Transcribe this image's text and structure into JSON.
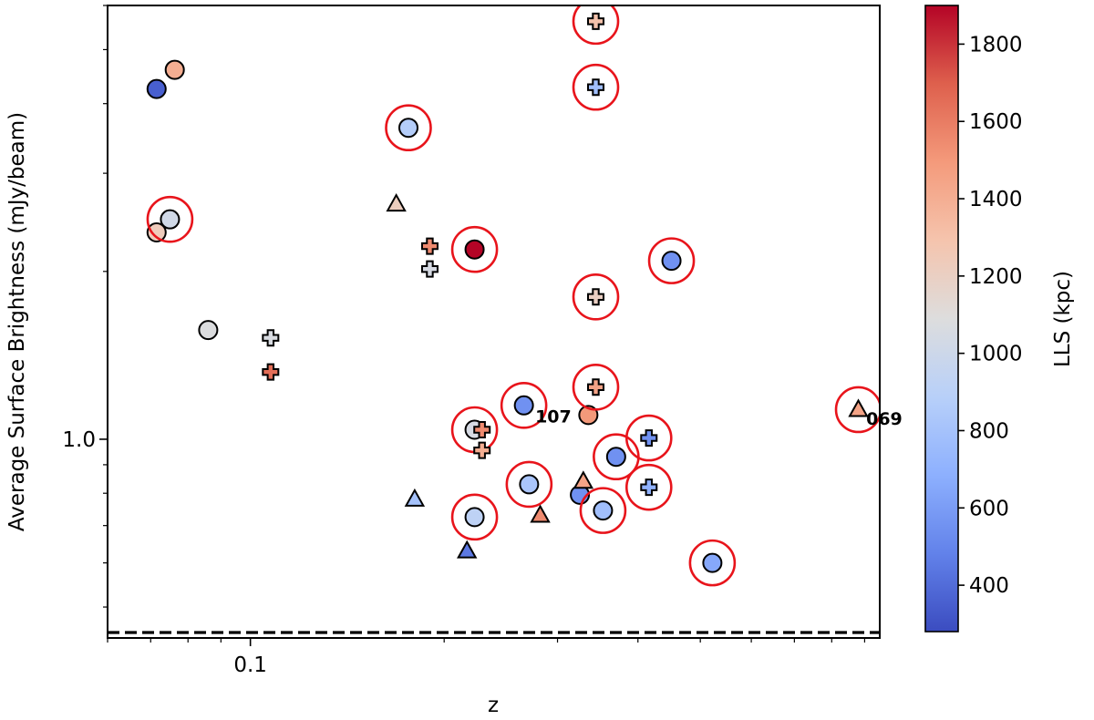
{
  "chart_data": {
    "type": "scatter",
    "xlabel": "z",
    "ylabel": "Average Surface Brightness (mJy/beam)",
    "x_scale": "log",
    "y_scale": "log",
    "xlim": [
      0.06,
      0.95
    ],
    "ylim": [
      0.44,
      6.0
    ],
    "x_tick_labels": [
      {
        "value": 0.1,
        "label": "0.1"
      }
    ],
    "y_tick_labels": [
      {
        "value": 1.0,
        "label": "1.0"
      }
    ],
    "reference_line": {
      "y": 0.45,
      "style": "dashed"
    },
    "colorbar": {
      "label": "LLS (kpc)",
      "min": 280,
      "max": 1900,
      "colormap": "coolwarm",
      "ticks": [
        400,
        600,
        800,
        1000,
        1200,
        1400,
        1600,
        1800
      ],
      "tick_labels": [
        "400",
        "600",
        "800",
        "1000",
        "1200",
        "1400",
        "1600",
        "1800"
      ]
    },
    "marker_legend": {
      "circle": "circle",
      "plus": "plus",
      "triangle": "triangle",
      "ring": "red ring"
    },
    "points": [
      {
        "z": 0.0715,
        "sb": 4.25,
        "lls": 350,
        "marker": "circle",
        "ring": false
      },
      {
        "z": 0.0763,
        "sb": 4.6,
        "lls": 1400,
        "marker": "circle",
        "ring": false
      },
      {
        "z": 0.0715,
        "sb": 2.35,
        "lls": 1230,
        "marker": "circle",
        "ring": false
      },
      {
        "z": 0.075,
        "sb": 2.48,
        "lls": 1020,
        "marker": "circle",
        "ring": true
      },
      {
        "z": 0.086,
        "sb": 1.57,
        "lls": 1080,
        "marker": "circle",
        "ring": false
      },
      {
        "z": 0.1075,
        "sb": 1.52,
        "lls": 1060,
        "marker": "plus",
        "ring": false
      },
      {
        "z": 0.1075,
        "sb": 1.32,
        "lls": 1650,
        "marker": "plus",
        "ring": false
      },
      {
        "z": 0.1685,
        "sb": 2.64,
        "lls": 1220,
        "marker": "triangle",
        "ring": false
      },
      {
        "z": 0.176,
        "sb": 3.62,
        "lls": 870,
        "marker": "circle",
        "ring": true
      },
      {
        "z": 0.19,
        "sb": 2.22,
        "lls": 1550,
        "marker": "plus",
        "ring": false
      },
      {
        "z": 0.19,
        "sb": 2.02,
        "lls": 1050,
        "marker": "plus",
        "ring": false
      },
      {
        "z": 0.18,
        "sb": 0.78,
        "lls": 800,
        "marker": "triangle",
        "ring": false
      },
      {
        "z": 0.217,
        "sb": 0.63,
        "lls": 450,
        "marker": "triangle",
        "ring": false
      },
      {
        "z": 0.223,
        "sb": 2.19,
        "lls": 1900,
        "marker": "circle",
        "ring": true
      },
      {
        "z": 0.223,
        "sb": 1.04,
        "lls": 1050,
        "marker": "circle",
        "ring": true
      },
      {
        "z": 0.229,
        "sb": 1.04,
        "lls": 1550,
        "marker": "plus",
        "ring": false
      },
      {
        "z": 0.229,
        "sb": 0.955,
        "lls": 1400,
        "marker": "plus",
        "ring": false
      },
      {
        "z": 0.223,
        "sb": 0.725,
        "lls": 920,
        "marker": "circle",
        "ring": true
      },
      {
        "z": 0.266,
        "sb": 1.15,
        "lls": 550,
        "marker": "circle",
        "ring": true
      },
      {
        "z": 0.271,
        "sb": 0.83,
        "lls": 820,
        "marker": "circle",
        "ring": true
      },
      {
        "z": 0.282,
        "sb": 0.73,
        "lls": 1550,
        "marker": "triangle",
        "ring": false
      },
      {
        "z": 0.325,
        "sb": 0.795,
        "lls": 550,
        "marker": "circle",
        "ring": false
      },
      {
        "z": 0.329,
        "sb": 0.84,
        "lls": 1450,
        "marker": "triangle",
        "ring": false
      },
      {
        "z": 0.335,
        "sb": 1.105,
        "lls": 1500,
        "marker": "circle",
        "ring": false
      },
      {
        "z": 0.344,
        "sb": 5.62,
        "lls": 1300,
        "marker": "plus",
        "ring": true
      },
      {
        "z": 0.344,
        "sb": 4.28,
        "lls": 780,
        "marker": "plus",
        "ring": true
      },
      {
        "z": 0.344,
        "sb": 1.8,
        "lls": 1200,
        "marker": "plus",
        "ring": true
      },
      {
        "z": 0.344,
        "sb": 1.24,
        "lls": 1450,
        "marker": "plus",
        "ring": true
      },
      {
        "z": 0.353,
        "sb": 0.745,
        "lls": 780,
        "marker": "circle",
        "ring": true
      },
      {
        "z": 0.37,
        "sb": 0.93,
        "lls": 550,
        "marker": "circle",
        "ring": true
      },
      {
        "z": 0.416,
        "sb": 1.005,
        "lls": 550,
        "marker": "plus",
        "ring": true
      },
      {
        "z": 0.416,
        "sb": 0.82,
        "lls": 700,
        "marker": "plus",
        "ring": true
      },
      {
        "z": 0.451,
        "sb": 2.09,
        "lls": 550,
        "marker": "circle",
        "ring": true
      },
      {
        "z": 0.522,
        "sb": 0.6,
        "lls": 650,
        "marker": "circle",
        "ring": true
      },
      {
        "z": 0.88,
        "sb": 1.13,
        "lls": 1450,
        "marker": "triangle",
        "ring": true
      }
    ],
    "annotations": [
      {
        "text": "107",
        "z": 0.277,
        "sb": 1.105
      },
      {
        "text": "069",
        "z": 0.905,
        "sb": 1.095
      }
    ]
  }
}
